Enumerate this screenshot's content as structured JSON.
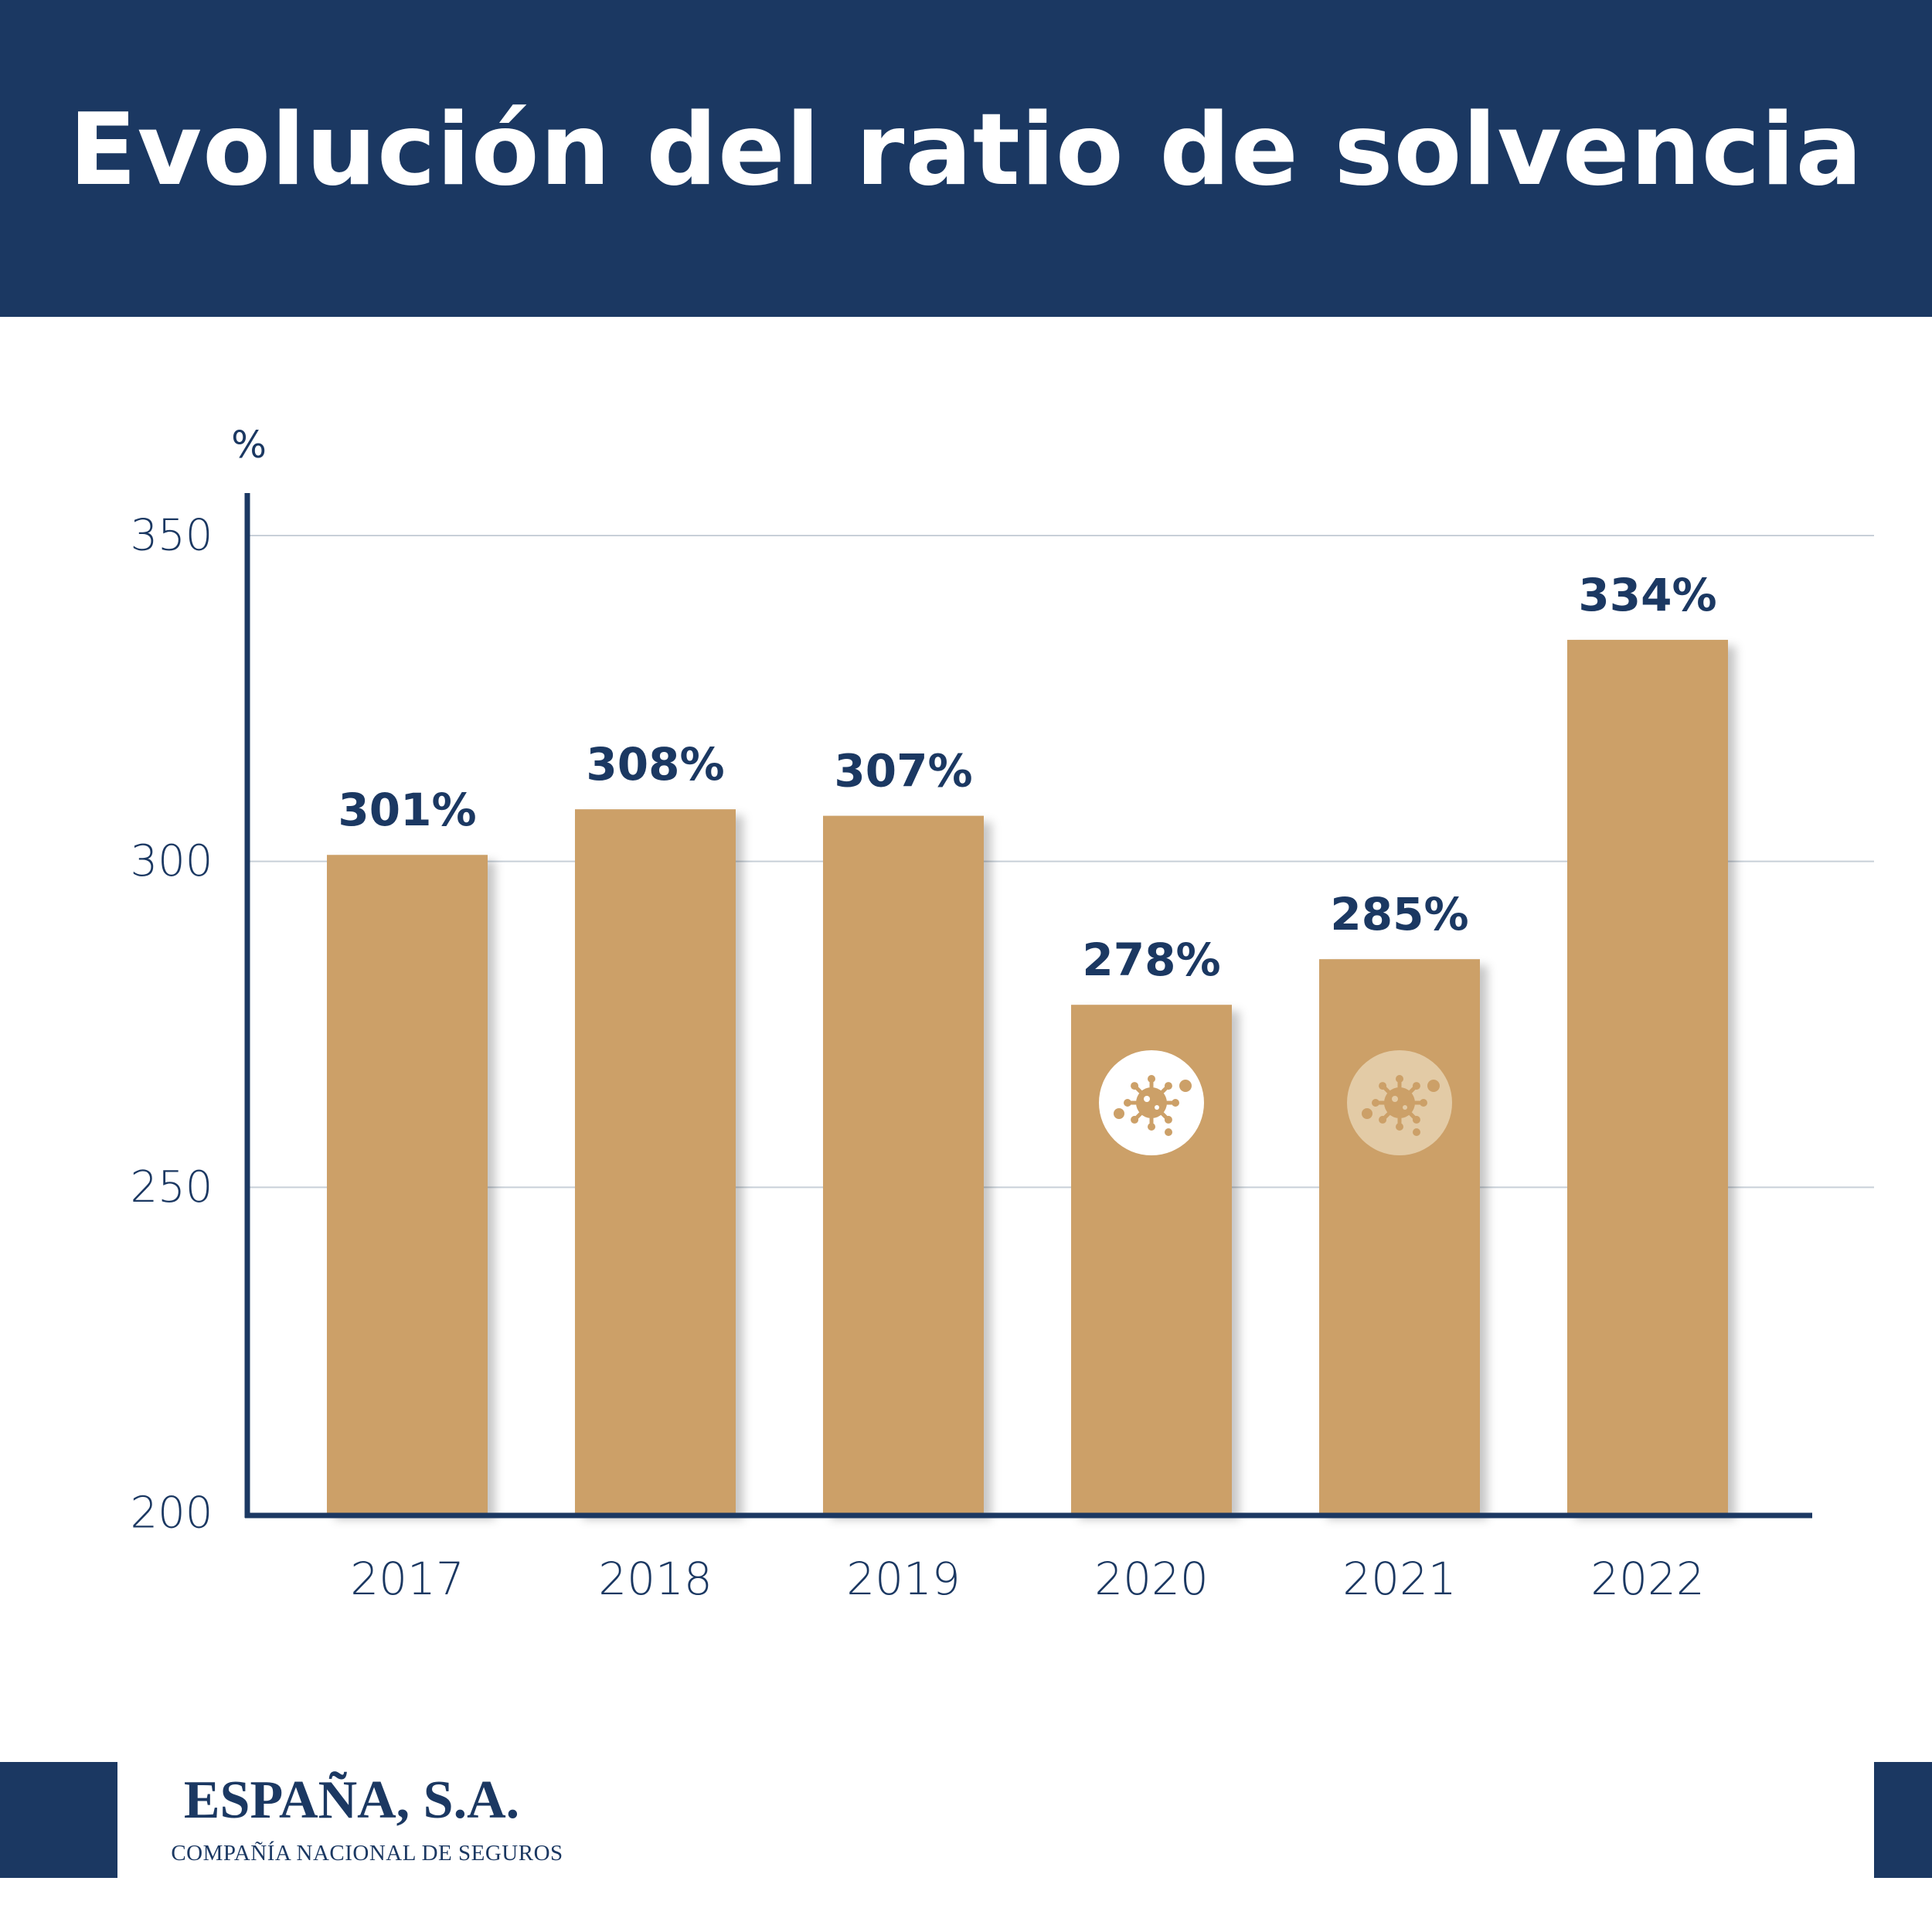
{
  "header": {
    "title": "Evolución del ratio de solvencia"
  },
  "chart_data": {
    "type": "bar",
    "title": "Evolución del ratio de solvencia",
    "ylabel": "%",
    "xlabel": "",
    "categories": [
      "2017",
      "2018",
      "2019",
      "2020",
      "2021",
      "2022"
    ],
    "values": [
      301,
      308,
      307,
      278,
      285,
      334
    ],
    "data_labels": [
      "301%",
      "308%",
      "307%",
      "278%",
      "285%",
      "334%"
    ],
    "ylim": [
      200,
      350
    ],
    "yticks": [
      200,
      250,
      300,
      350
    ],
    "grid": true,
    "annotations": [
      {
        "category": "2020",
        "icon": "virus-icon",
        "style": "solid"
      },
      {
        "category": "2021",
        "icon": "virus-icon",
        "style": "faded"
      }
    ],
    "colors": {
      "bar": "#cca068",
      "axis": "#1b3862",
      "grid": "#c8d0d8",
      "label": "#1b3862",
      "tick": "#1b3862"
    }
  },
  "logo": {
    "name": "ESPAÑA, S.A.",
    "subtitle": "COMPAÑÍA NACIONAL DE SEGUROS"
  }
}
